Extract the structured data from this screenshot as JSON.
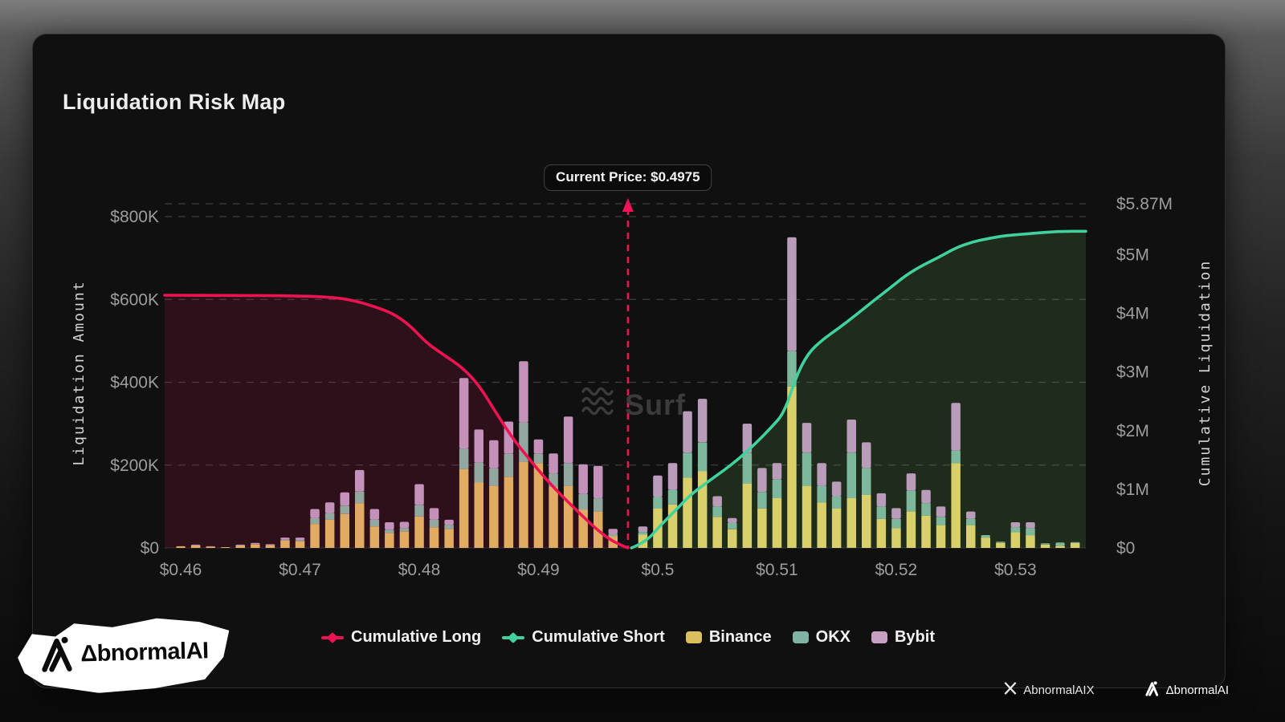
{
  "header": {
    "title": "Liquidation Risk Map"
  },
  "annotations": {
    "current_price_label": "Current Price: $0.4975"
  },
  "watermark": {
    "text": "Surf",
    "icon": "waves-icon"
  },
  "branding": {
    "sticker_text": "ΔbnormalAI",
    "footer_x_handle": "AbnormalAIX",
    "footer_brand": "ΔbnormalAI"
  },
  "legend": {
    "items": [
      {
        "label": "Cumulative Long",
        "type": "line",
        "color_key": "cumulative_long"
      },
      {
        "label": "Cumulative Short",
        "type": "line",
        "color_key": "cumulative_short"
      },
      {
        "label": "Binance",
        "type": "swatch",
        "color_key": "binance"
      },
      {
        "label": "OKX",
        "type": "swatch",
        "color_key": "okx"
      },
      {
        "label": "Bybit",
        "type": "swatch",
        "color_key": "bybit"
      }
    ]
  },
  "colors": {
    "cumulative_long": "#ed1352",
    "cumulative_short": "#41d19e",
    "long_area": "rgba(224,20,84,0.15)",
    "short_area": "rgba(114,190,82,0.16)",
    "binance": "#d9c05e",
    "okx": "#7fb3a4",
    "bybit": "#c79fc2",
    "bars_left": {
      "binance": "#e2ab62",
      "okx": "#93a7a1",
      "bybit": "#c491ba"
    },
    "bars_right": {
      "binance": "#d9d06b",
      "okx": "#7eb89c",
      "bybit": "#b99cba"
    },
    "grid": "#3e3e44",
    "divider": "#f01355",
    "tick_text": "#9d9d9d",
    "axis_title_text": "#d4d4d4"
  },
  "chart_data": {
    "type": "bar",
    "title": "Liquidation Risk Map",
    "current_price": 0.4975,
    "x_domain": [
      0.45865,
      0.5359
    ],
    "x_axis": {
      "tick_values": [
        0.46,
        0.47,
        0.48,
        0.49,
        0.5,
        0.51,
        0.52,
        0.53
      ],
      "tick_labels": [
        "$0.46",
        "$0.47",
        "$0.48",
        "$0.49",
        "$0.5",
        "$0.51",
        "$0.52",
        "$0.53"
      ]
    },
    "left_axis": {
      "title": "Liquidation Amount",
      "unit": "K",
      "max": 800,
      "tick_values": [
        0,
        200,
        400,
        600,
        800
      ],
      "tick_labels": [
        "$0",
        "$200K",
        "$400K",
        "$600K",
        "$800K"
      ]
    },
    "right_axis": {
      "title": "Cumulative Liquidation",
      "unit": "M",
      "max": 5.87,
      "tick_values": [
        0,
        1,
        2,
        3,
        4,
        5,
        5.87
      ],
      "tick_labels": [
        "$0",
        "$1M",
        "$2M",
        "$3M",
        "$4M",
        "$5M",
        "$5.87M"
      ]
    },
    "bars_unit_K": [
      {
        "p": 0.46,
        "binance": 4,
        "okx": 0,
        "bybit": 0
      },
      {
        "p": 0.46125,
        "binance": 6,
        "okx": 0,
        "bybit": 2
      },
      {
        "p": 0.4625,
        "binance": 3,
        "okx": 0,
        "bybit": 1
      },
      {
        "p": 0.46375,
        "binance": 2,
        "okx": 0,
        "bybit": 0
      },
      {
        "p": 0.465,
        "binance": 6,
        "okx": 0,
        "bybit": 2
      },
      {
        "p": 0.46625,
        "binance": 9,
        "okx": 0,
        "bybit": 3
      },
      {
        "p": 0.4675,
        "binance": 7,
        "okx": 0,
        "bybit": 2
      },
      {
        "p": 0.46875,
        "binance": 18,
        "okx": 2,
        "bybit": 5
      },
      {
        "p": 0.47,
        "binance": 16,
        "okx": 3,
        "bybit": 6
      },
      {
        "p": 0.47125,
        "binance": 58,
        "okx": 14,
        "bybit": 22
      },
      {
        "p": 0.4725,
        "binance": 68,
        "okx": 16,
        "bybit": 26
      },
      {
        "p": 0.47375,
        "binance": 82,
        "okx": 20,
        "bybit": 32
      },
      {
        "p": 0.475,
        "binance": 108,
        "okx": 28,
        "bybit": 52
      },
      {
        "p": 0.47625,
        "binance": 52,
        "okx": 16,
        "bybit": 26
      },
      {
        "p": 0.4775,
        "binance": 36,
        "okx": 8,
        "bybit": 18
      },
      {
        "p": 0.47875,
        "binance": 40,
        "okx": 8,
        "bybit": 15
      },
      {
        "p": 0.48,
        "binance": 76,
        "okx": 28,
        "bybit": 50
      },
      {
        "p": 0.48125,
        "binance": 50,
        "okx": 18,
        "bybit": 28
      },
      {
        "p": 0.4825,
        "binance": 46,
        "okx": 10,
        "bybit": 12
      },
      {
        "p": 0.48375,
        "binance": 190,
        "okx": 50,
        "bybit": 170
      },
      {
        "p": 0.485,
        "binance": 158,
        "okx": 48,
        "bybit": 80
      },
      {
        "p": 0.48625,
        "binance": 150,
        "okx": 42,
        "bybit": 68
      },
      {
        "p": 0.4875,
        "binance": 172,
        "okx": 55,
        "bybit": 78
      },
      {
        "p": 0.48875,
        "binance": 208,
        "okx": 95,
        "bybit": 148
      },
      {
        "p": 0.49,
        "binance": 205,
        "okx": 22,
        "bybit": 35
      },
      {
        "p": 0.49125,
        "binance": 148,
        "okx": 32,
        "bybit": 48
      },
      {
        "p": 0.4925,
        "binance": 150,
        "okx": 55,
        "bybit": 112
      },
      {
        "p": 0.49375,
        "binance": 92,
        "okx": 38,
        "bybit": 72
      },
      {
        "p": 0.495,
        "binance": 88,
        "okx": 32,
        "bybit": 78
      },
      {
        "p": 0.49625,
        "binance": 28,
        "okx": 6,
        "bybit": 12
      },
      {
        "p": 0.49875,
        "binance": 32,
        "okx": 6,
        "bybit": 14
      },
      {
        "p": 0.5,
        "binance": 95,
        "okx": 28,
        "bybit": 52
      },
      {
        "p": 0.50125,
        "binance": 105,
        "okx": 35,
        "bybit": 65
      },
      {
        "p": 0.5025,
        "binance": 170,
        "okx": 60,
        "bybit": 100
      },
      {
        "p": 0.50375,
        "binance": 185,
        "okx": 70,
        "bybit": 105
      },
      {
        "p": 0.505,
        "binance": 75,
        "okx": 25,
        "bybit": 25
      },
      {
        "p": 0.50625,
        "binance": 45,
        "okx": 15,
        "bybit": 12
      },
      {
        "p": 0.5075,
        "binance": 155,
        "okx": 75,
        "bybit": 70
      },
      {
        "p": 0.50875,
        "binance": 95,
        "okx": 40,
        "bybit": 58
      },
      {
        "p": 0.51,
        "binance": 120,
        "okx": 45,
        "bybit": 40
      },
      {
        "p": 0.51125,
        "binance": 390,
        "okx": 85,
        "bybit": 275
      },
      {
        "p": 0.5125,
        "binance": 150,
        "okx": 80,
        "bybit": 72
      },
      {
        "p": 0.51375,
        "binance": 110,
        "okx": 40,
        "bybit": 55
      },
      {
        "p": 0.515,
        "binance": 95,
        "okx": 30,
        "bybit": 35
      },
      {
        "p": 0.51625,
        "binance": 120,
        "okx": 110,
        "bybit": 80
      },
      {
        "p": 0.5175,
        "binance": 128,
        "okx": 65,
        "bybit": 62
      },
      {
        "p": 0.51875,
        "binance": 70,
        "okx": 30,
        "bybit": 32
      },
      {
        "p": 0.52,
        "binance": 48,
        "okx": 22,
        "bybit": 26
      },
      {
        "p": 0.52125,
        "binance": 88,
        "okx": 50,
        "bybit": 42
      },
      {
        "p": 0.5225,
        "binance": 78,
        "okx": 30,
        "bybit": 32
      },
      {
        "p": 0.52375,
        "binance": 55,
        "okx": 20,
        "bybit": 25
      },
      {
        "p": 0.525,
        "binance": 205,
        "okx": 30,
        "bybit": 115
      },
      {
        "p": 0.52625,
        "binance": 55,
        "okx": 15,
        "bybit": 18
      },
      {
        "p": 0.5275,
        "binance": 25,
        "okx": 6,
        "bybit": 0
      },
      {
        "p": 0.52875,
        "binance": 12,
        "okx": 3,
        "bybit": 0
      },
      {
        "p": 0.53,
        "binance": 38,
        "okx": 12,
        "bybit": 12
      },
      {
        "p": 0.53125,
        "binance": 30,
        "okx": 18,
        "bybit": 14
      },
      {
        "p": 0.5325,
        "binance": 8,
        "okx": 3,
        "bybit": 0
      },
      {
        "p": 0.53375,
        "binance": 5,
        "okx": 8,
        "bybit": 0
      },
      {
        "p": 0.535,
        "binance": 12,
        "okx": 2,
        "bybit": 0
      }
    ],
    "cumulative_long_M": [
      [
        0.45865,
        4.31
      ],
      [
        0.464,
        4.31
      ],
      [
        0.47,
        4.3
      ],
      [
        0.473,
        4.27
      ],
      [
        0.4745,
        4.22
      ],
      [
        0.4762,
        4.12
      ],
      [
        0.4778,
        4.0
      ],
      [
        0.4792,
        3.8
      ],
      [
        0.4806,
        3.5
      ],
      [
        0.482,
        3.3
      ],
      [
        0.4836,
        3.08
      ],
      [
        0.485,
        2.78
      ],
      [
        0.4864,
        2.32
      ],
      [
        0.4878,
        1.88
      ],
      [
        0.4892,
        1.52
      ],
      [
        0.4906,
        1.18
      ],
      [
        0.492,
        0.88
      ],
      [
        0.4934,
        0.6
      ],
      [
        0.4948,
        0.33
      ],
      [
        0.496,
        0.14
      ],
      [
        0.497,
        0.04
      ],
      [
        0.4975,
        0.0
      ]
    ],
    "cumulative_short_M": [
      [
        0.4978,
        0.0
      ],
      [
        0.499,
        0.1
      ],
      [
        0.5002,
        0.38
      ],
      [
        0.5014,
        0.62
      ],
      [
        0.5026,
        0.88
      ],
      [
        0.504,
        1.1
      ],
      [
        0.5054,
        1.3
      ],
      [
        0.5068,
        1.52
      ],
      [
        0.5082,
        1.78
      ],
      [
        0.5095,
        2.05
      ],
      [
        0.5106,
        2.3
      ],
      [
        0.5116,
        2.92
      ],
      [
        0.5126,
        3.32
      ],
      [
        0.5138,
        3.55
      ],
      [
        0.5152,
        3.75
      ],
      [
        0.5166,
        3.97
      ],
      [
        0.518,
        4.2
      ],
      [
        0.5194,
        4.42
      ],
      [
        0.5208,
        4.65
      ],
      [
        0.5222,
        4.82
      ],
      [
        0.5236,
        4.96
      ],
      [
        0.525,
        5.12
      ],
      [
        0.5264,
        5.22
      ],
      [
        0.5278,
        5.28
      ],
      [
        0.5292,
        5.33
      ],
      [
        0.5312,
        5.36
      ],
      [
        0.5335,
        5.4
      ],
      [
        0.5359,
        5.4
      ]
    ]
  }
}
